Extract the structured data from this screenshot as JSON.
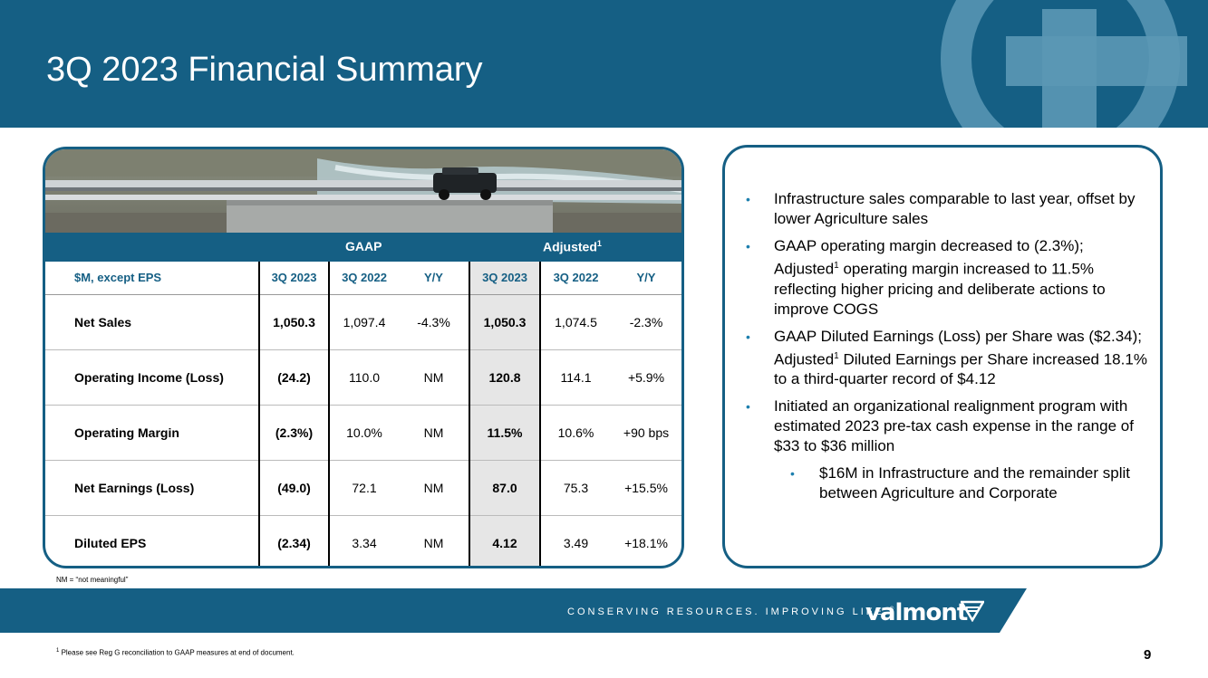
{
  "header": {
    "title": "3Q 2023 Financial Summary"
  },
  "table": {
    "group_gaap": "GAAP",
    "group_adjusted": "Adjusted",
    "group_adjusted_sup": "1",
    "columns": [
      "$M, except EPS",
      "3Q 2023",
      "3Q 2022",
      "Y/Y",
      "3Q 2023",
      "3Q 2022",
      "Y/Y"
    ],
    "rows": [
      [
        "Net Sales",
        "1,050.3",
        "1,097.4",
        "-4.3%",
        "1,050.3",
        "1,074.5",
        "-2.3%"
      ],
      [
        "Operating Income (Loss)",
        "(24.2)",
        "110.0",
        "NM",
        "120.8",
        "114.1",
        "+5.9%"
      ],
      [
        "Operating Margin",
        "(2.3%)",
        "10.0%",
        "NM",
        "11.5%",
        "10.6%",
        "+90 bps"
      ],
      [
        "Net Earnings (Loss)",
        "(49.0)",
        "72.1",
        "NM",
        "87.0",
        "75.3",
        "+15.5%"
      ],
      [
        "Diluted EPS",
        "(2.34)",
        "3.34",
        "NM",
        "4.12",
        "3.49",
        "+18.1%"
      ]
    ]
  },
  "nm_note": "NM = “not meaningful”",
  "bullets": {
    "b1": "Infrastructure sales comparable to last year, offset by lower Agriculture sales",
    "b2_a": "GAAP operating margin decreased to (2.3%); Adjusted",
    "b2_b": " operating margin increased to 11.5% reflecting higher pricing and deliberate actions to improve COGS",
    "b3_a": "GAAP Diluted Earnings (Loss) per Share was ($2.34); Adjusted",
    "b3_b": " Diluted Earnings per Share increased 18.1% to a third-quarter record of $4.12",
    "b4": "Initiated an organizational realignment program with estimated 2023 pre-tax cash expense in the range of $33 to $36 million",
    "b4_sub": "$16M in Infrastructure and the remainder split between Agriculture and Corporate",
    "sup": "1",
    "marker": "•"
  },
  "footer": {
    "tagline": "CONSERVING RESOURCES. IMPROVING LIFE.",
    "tagline_mark": "®",
    "brand": "valmont",
    "footnote_sup": "1",
    "footnote": " Please see Reg G reconciliation to GAAP measures at end of document.",
    "page_number": "9"
  },
  "colors": {
    "brand_blue": "#155f84",
    "accent_blue": "#1d7fae",
    "shade": "#e6e6e6"
  }
}
